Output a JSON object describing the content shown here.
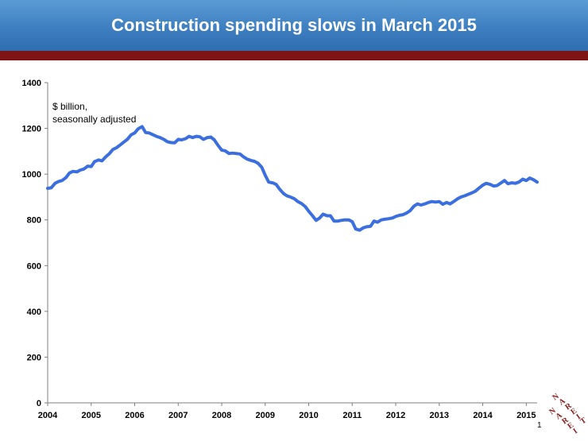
{
  "header": {
    "title": "Construction spending slows in March 2015"
  },
  "footer": {
    "page_number": "1",
    "logo_text": "NAREIT"
  },
  "colors": {
    "title_bar": "#3e7fc1",
    "accent_bar": "#7f1416",
    "line": "#3b6fe0",
    "logo": "#8b1a1a"
  },
  "chart_data": {
    "type": "line",
    "title": "Construction spending slows in March 2015",
    "note": [
      "$ billion,",
      "seasonally adjusted"
    ],
    "xlabel": "",
    "ylabel": "",
    "xlim": [
      2004.0,
      2015.25
    ],
    "ylim": [
      0,
      1400
    ],
    "x_ticks": [
      "2004",
      "2005",
      "2006",
      "2007",
      "2008",
      "2009",
      "2010",
      "2011",
      "2012",
      "2013",
      "2014",
      "2015"
    ],
    "y_ticks": [
      "0",
      "200",
      "400",
      "600",
      "800",
      "1000",
      "1200",
      "1400"
    ],
    "grid": false,
    "legend": "none",
    "series": [
      {
        "points": [
          [
            2004.0,
            938
          ],
          [
            2004.08,
            940
          ],
          [
            2004.17,
            960
          ],
          [
            2004.25,
            968
          ],
          [
            2004.33,
            972
          ],
          [
            2004.42,
            985
          ],
          [
            2004.5,
            1005
          ],
          [
            2004.58,
            1012
          ],
          [
            2004.67,
            1010
          ],
          [
            2004.75,
            1018
          ],
          [
            2004.83,
            1022
          ],
          [
            2004.92,
            1035
          ],
          [
            2005.0,
            1033
          ],
          [
            2005.08,
            1055
          ],
          [
            2005.17,
            1062
          ],
          [
            2005.25,
            1058
          ],
          [
            2005.33,
            1075
          ],
          [
            2005.42,
            1090
          ],
          [
            2005.5,
            1108
          ],
          [
            2005.58,
            1115
          ],
          [
            2005.67,
            1128
          ],
          [
            2005.75,
            1140
          ],
          [
            2005.83,
            1152
          ],
          [
            2005.92,
            1172
          ],
          [
            2006.0,
            1180
          ],
          [
            2006.08,
            1198
          ],
          [
            2006.17,
            1208
          ],
          [
            2006.25,
            1182
          ],
          [
            2006.33,
            1180
          ],
          [
            2006.42,
            1172
          ],
          [
            2006.5,
            1165
          ],
          [
            2006.58,
            1160
          ],
          [
            2006.67,
            1152
          ],
          [
            2006.75,
            1142
          ],
          [
            2006.83,
            1138
          ],
          [
            2006.92,
            1137
          ],
          [
            2007.0,
            1152
          ],
          [
            2007.08,
            1150
          ],
          [
            2007.17,
            1155
          ],
          [
            2007.25,
            1165
          ],
          [
            2007.33,
            1160
          ],
          [
            2007.42,
            1165
          ],
          [
            2007.5,
            1163
          ],
          [
            2007.58,
            1152
          ],
          [
            2007.67,
            1160
          ],
          [
            2007.75,
            1162
          ],
          [
            2007.83,
            1150
          ],
          [
            2007.92,
            1125
          ],
          [
            2008.0,
            1105
          ],
          [
            2008.08,
            1102
          ],
          [
            2008.17,
            1090
          ],
          [
            2008.25,
            1092
          ],
          [
            2008.33,
            1090
          ],
          [
            2008.42,
            1088
          ],
          [
            2008.5,
            1076
          ],
          [
            2008.58,
            1066
          ],
          [
            2008.67,
            1060
          ],
          [
            2008.75,
            1056
          ],
          [
            2008.83,
            1048
          ],
          [
            2008.92,
            1030
          ],
          [
            2009.0,
            995
          ],
          [
            2009.08,
            965
          ],
          [
            2009.17,
            962
          ],
          [
            2009.25,
            955
          ],
          [
            2009.33,
            935
          ],
          [
            2009.42,
            915
          ],
          [
            2009.5,
            905
          ],
          [
            2009.58,
            900
          ],
          [
            2009.67,
            892
          ],
          [
            2009.75,
            880
          ],
          [
            2009.83,
            872
          ],
          [
            2009.92,
            858
          ],
          [
            2010.0,
            838
          ],
          [
            2010.08,
            820
          ],
          [
            2010.17,
            798
          ],
          [
            2010.25,
            808
          ],
          [
            2010.33,
            825
          ],
          [
            2010.42,
            818
          ],
          [
            2010.5,
            818
          ],
          [
            2010.58,
            795
          ],
          [
            2010.67,
            795
          ],
          [
            2010.75,
            798
          ],
          [
            2010.83,
            800
          ],
          [
            2010.92,
            800
          ],
          [
            2011.0,
            792
          ],
          [
            2011.08,
            760
          ],
          [
            2011.17,
            755
          ],
          [
            2011.25,
            765
          ],
          [
            2011.33,
            770
          ],
          [
            2011.42,
            772
          ],
          [
            2011.5,
            795
          ],
          [
            2011.58,
            790
          ],
          [
            2011.67,
            800
          ],
          [
            2011.75,
            803
          ],
          [
            2011.83,
            805
          ],
          [
            2011.92,
            808
          ],
          [
            2012.0,
            815
          ],
          [
            2012.08,
            820
          ],
          [
            2012.17,
            823
          ],
          [
            2012.25,
            830
          ],
          [
            2012.33,
            840
          ],
          [
            2012.42,
            860
          ],
          [
            2012.5,
            870
          ],
          [
            2012.58,
            865
          ],
          [
            2012.67,
            870
          ],
          [
            2012.75,
            876
          ],
          [
            2012.83,
            880
          ],
          [
            2012.92,
            878
          ],
          [
            2013.0,
            880
          ],
          [
            2013.08,
            868
          ],
          [
            2013.17,
            876
          ],
          [
            2013.25,
            870
          ],
          [
            2013.33,
            880
          ],
          [
            2013.42,
            892
          ],
          [
            2013.5,
            900
          ],
          [
            2013.58,
            905
          ],
          [
            2013.67,
            912
          ],
          [
            2013.75,
            918
          ],
          [
            2013.83,
            925
          ],
          [
            2013.92,
            940
          ],
          [
            2014.0,
            952
          ],
          [
            2014.08,
            960
          ],
          [
            2014.17,
            955
          ],
          [
            2014.25,
            948
          ],
          [
            2014.33,
            950
          ],
          [
            2014.42,
            962
          ],
          [
            2014.5,
            972
          ],
          [
            2014.58,
            958
          ],
          [
            2014.67,
            962
          ],
          [
            2014.75,
            960
          ],
          [
            2014.83,
            965
          ],
          [
            2014.92,
            978
          ],
          [
            2015.0,
            972
          ],
          [
            2015.08,
            983
          ],
          [
            2015.17,
            975
          ],
          [
            2015.25,
            965
          ]
        ]
      }
    ]
  }
}
